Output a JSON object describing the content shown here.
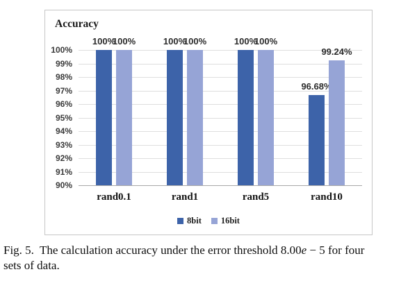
{
  "chart_data": {
    "type": "bar",
    "title": "Accuracy",
    "categories": [
      "rand0.1",
      "rand1",
      "rand5",
      "rand10"
    ],
    "series": [
      {
        "name": "8bit",
        "color": "#3d63a9",
        "values": [
          100,
          100,
          100,
          96.68
        ],
        "labels": [
          "100%",
          "100%",
          "100%",
          "96.68%"
        ]
      },
      {
        "name": "16bit",
        "color": "#96a4d6",
        "values": [
          100,
          100,
          100,
          99.24
        ],
        "labels": [
          "100%",
          "100%",
          "100%",
          "99.24%"
        ]
      }
    ],
    "xlabel": "",
    "ylabel": "",
    "ylim": [
      90,
      100
    ],
    "ytick_labels": [
      "100%",
      "99%",
      "98%",
      "97%",
      "96%",
      "95%",
      "94%",
      "93%",
      "92%",
      "91%",
      "90%"
    ],
    "grid": true,
    "legend_position": "bottom",
    "gridline_color": "#dedede",
    "baseline_color": "#a8a8a8"
  },
  "figure": {
    "caption": {
      "fig_label": "Fig. 5.",
      "line1_text": "The calculation accuracy under the error threshold 8.00",
      "math_e": "e",
      "line1_rest": "− 5 for four",
      "line2": "sets of data."
    }
  }
}
